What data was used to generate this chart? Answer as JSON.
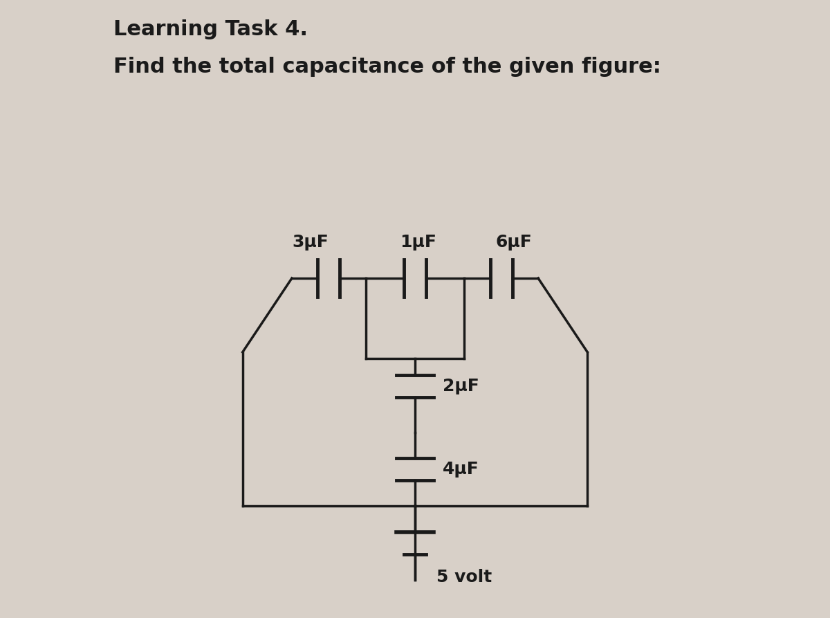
{
  "title_line1": "Learning Task 4.",
  "title_line2": "Find the total capacitance of the given figure:",
  "bg_color": "#d8d0c8",
  "line_color": "#1a1a1a",
  "text_color": "#1a1a1a",
  "cap_1uF": "1μF",
  "cap_3uF": "3μF",
  "cap_6uF": "6μF",
  "cap_2uF": "2μF",
  "cap_4uF": "4μF",
  "volt_label": "5 volt",
  "title_fontsize": 22,
  "label_fontsize": 18
}
